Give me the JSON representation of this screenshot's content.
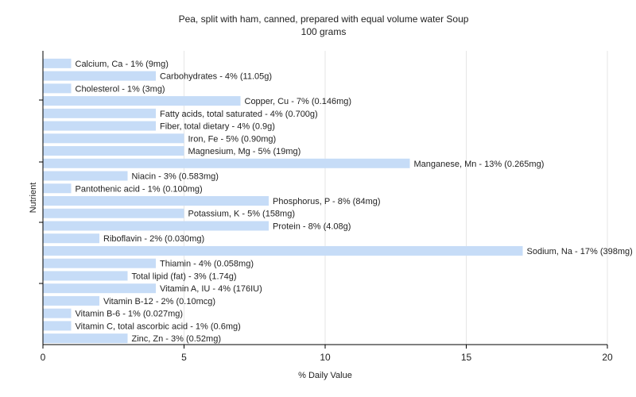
{
  "chart_data": {
    "type": "bar",
    "orientation": "horizontal",
    "title": "Pea, split with ham, canned, prepared with equal volume water Soup",
    "subtitle": "100 grams",
    "xlabel": "% Daily Value",
    "ylabel": "Nutrient",
    "xlim": [
      0,
      20
    ],
    "xticks": [
      "0",
      "5",
      "10",
      "15",
      "20"
    ],
    "grid": true,
    "colors": {
      "bar": "#c6dcf7",
      "grid": "#e6e6e6",
      "axis": "#000000",
      "text": "#222222"
    },
    "categories": [
      "Calcium, Ca",
      "Carbohydrates",
      "Cholesterol",
      "Copper, Cu",
      "Fatty acids, total saturated",
      "Fiber, total dietary",
      "Iron, Fe",
      "Magnesium, Mg",
      "Manganese, Mn",
      "Niacin",
      "Pantothenic acid",
      "Phosphorus, P",
      "Potassium, K",
      "Protein",
      "Riboflavin",
      "Sodium, Na",
      "Thiamin",
      "Total lipid (fat)",
      "Vitamin A, IU",
      "Vitamin B-12",
      "Vitamin B-6",
      "Vitamin C, total ascorbic acid",
      "Zinc, Zn"
    ],
    "values": [
      1,
      4,
      1,
      7,
      4,
      4,
      5,
      5,
      13,
      3,
      1,
      8,
      5,
      8,
      2,
      17,
      4,
      3,
      4,
      2,
      1,
      1,
      3
    ],
    "labels": [
      "Calcium, Ca - 1% (9mg)",
      "Carbohydrates - 4% (11.05g)",
      "Cholesterol - 1% (3mg)",
      "Copper, Cu - 7% (0.146mg)",
      "Fatty acids, total saturated - 4% (0.700g)",
      "Fiber, total dietary - 4% (0.9g)",
      "Iron, Fe - 5% (0.90mg)",
      "Magnesium, Mg - 5% (19mg)",
      "Manganese, Mn - 13% (0.265mg)",
      "Niacin - 3% (0.583mg)",
      "Pantothenic acid - 1% (0.100mg)",
      "Phosphorus, P - 8% (84mg)",
      "Potassium, K - 5% (158mg)",
      "Protein - 8% (4.08g)",
      "Riboflavin - 2% (0.030mg)",
      "Sodium, Na - 17% (398mg)",
      "Thiamin - 4% (0.058mg)",
      "Total lipid (fat) - 3% (1.74g)",
      "Vitamin A, IU - 4% (176IU)",
      "Vitamin B-12 - 2% (0.10mcg)",
      "Vitamin B-6 - 1% (0.027mg)",
      "Vitamin C, total ascorbic acid - 1% (0.6mg)",
      "Zinc, Zn - 3% (0.52mg)"
    ]
  }
}
